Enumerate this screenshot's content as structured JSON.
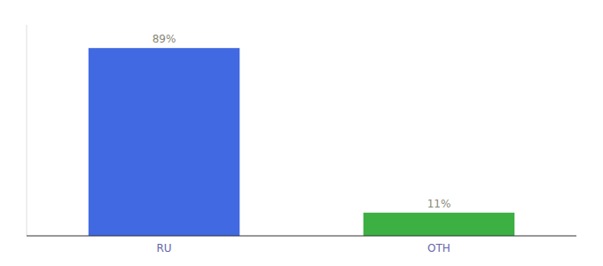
{
  "chart_data": {
    "type": "bar",
    "categories": [
      "RU",
      "OTH"
    ],
    "values": [
      89,
      11
    ],
    "value_labels": [
      "89%",
      "11%"
    ],
    "colors": [
      "#4169e1",
      "#3cb043"
    ],
    "ylim": [
      0,
      100
    ],
    "data_labels": true,
    "tick_labels": "x",
    "grid": false
  }
}
